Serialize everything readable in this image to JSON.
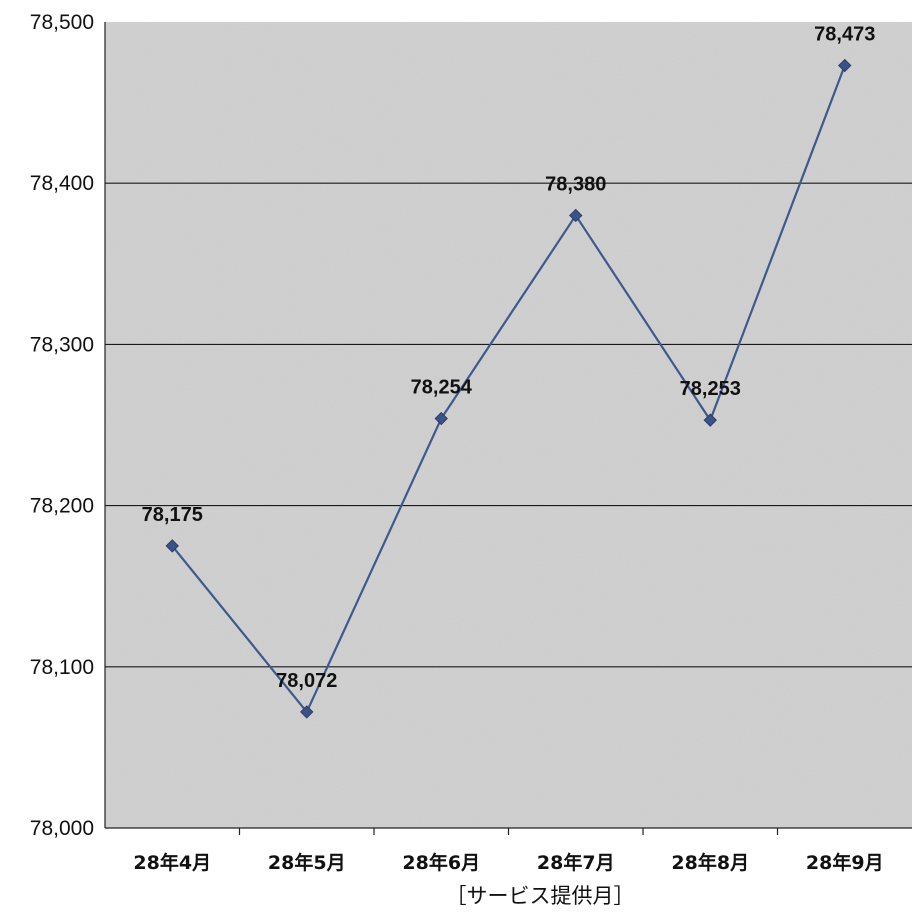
{
  "chart_data": {
    "type": "line",
    "categories": [
      "28年4月",
      "28年5月",
      "28年6月",
      "28年7月",
      "28年8月",
      "28年9月"
    ],
    "series": [
      {
        "values": [
          78175,
          78072,
          78254,
          78380,
          78253,
          78473
        ]
      }
    ],
    "data_labels": [
      "78,175",
      "78,072",
      "78,254",
      "78,380",
      "78,253",
      "78,473"
    ],
    "y_ticks": [
      "78,000",
      "78,100",
      "78,200",
      "78,300",
      "78,400",
      "78,500"
    ],
    "ylim": [
      78000,
      78500
    ],
    "xlabel": "［サービス提供月］",
    "ylabel": "",
    "title": "",
    "grid": true,
    "legend": "none",
    "colors": {
      "line": "#3d5a8c",
      "marker": "#3b5288",
      "plot_bg": "#d2d2d2",
      "grid": "#1a1a1a"
    }
  }
}
